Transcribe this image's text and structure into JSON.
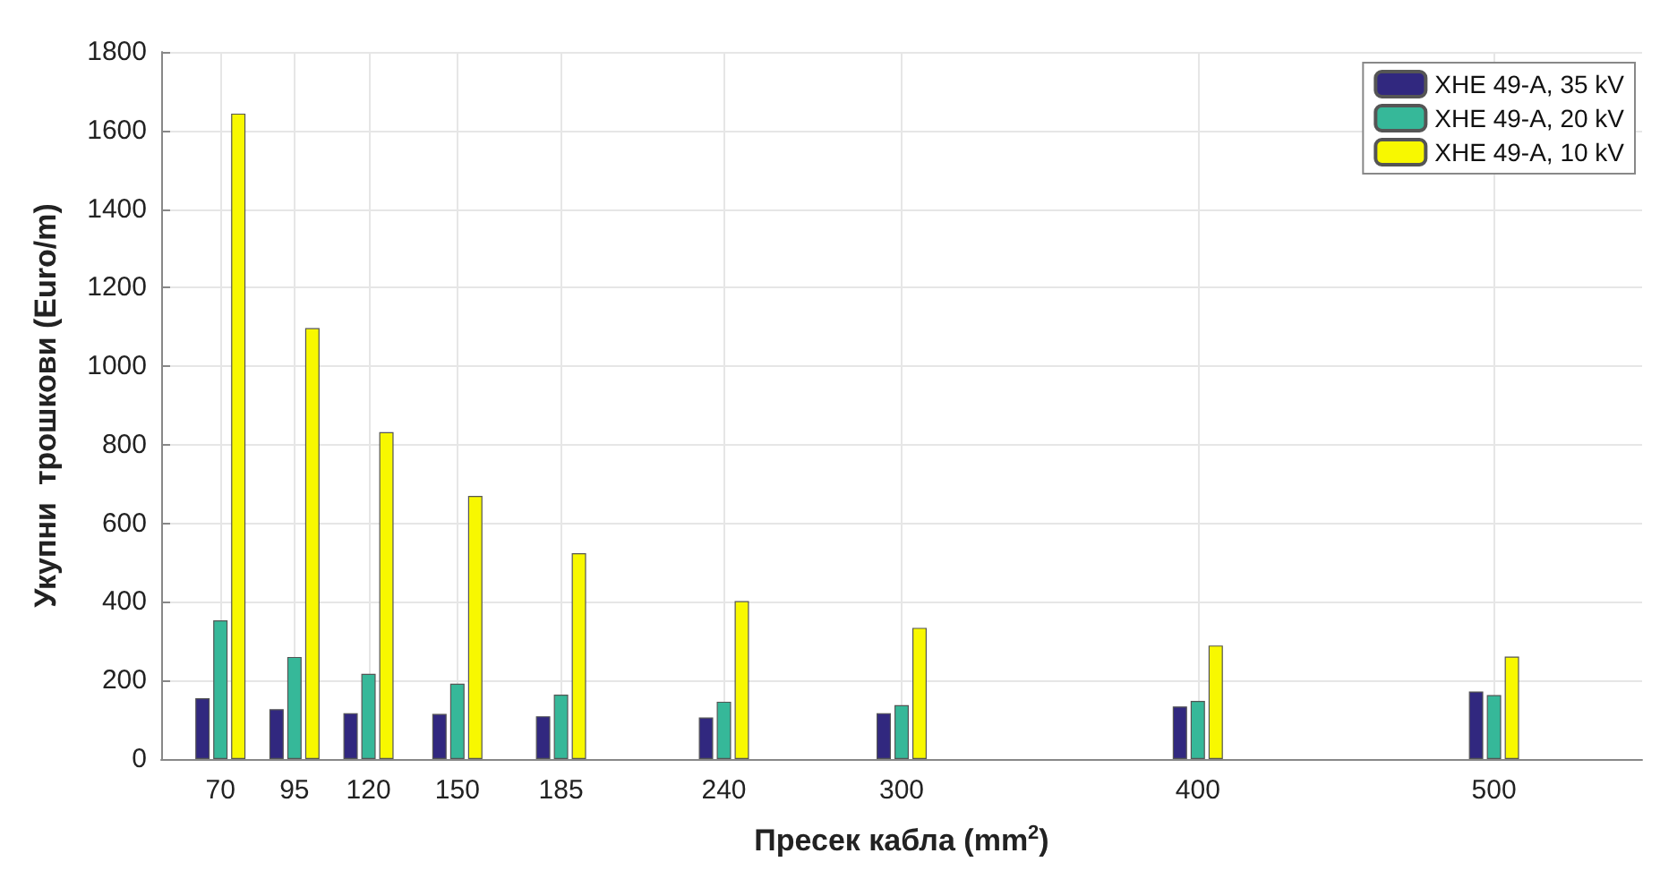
{
  "chart_data": {
    "type": "bar",
    "xlabel": "Пресек кабла (mm$^{2}$)",
    "ylabel": "Укупни  трошкови (Euro/m)",
    "x": [
      70,
      95,
      120,
      150,
      185,
      240,
      300,
      400,
      500
    ],
    "series": [
      {
        "name": "XHE 49-A, 35 kV",
        "color": "#31287f",
        "values": [
          155,
          127,
          117,
          115,
          109,
          106,
          117,
          134,
          172
        ]
      },
      {
        "name": "XHE 49-A, 20 kV",
        "color": "#36b899",
        "values": [
          353,
          260,
          217,
          192,
          164,
          146,
          137,
          148,
          163
        ]
      },
      {
        "name": "XHE 49-A, 10 kV",
        "color": "#f8f800",
        "values": [
          1643,
          1097,
          832,
          670,
          524,
          402,
          334,
          289,
          261
        ]
      }
    ],
    "xlim": [
      50,
      550
    ],
    "xticks": [
      70,
      95,
      120,
      150,
      185,
      240,
      300,
      400,
      500
    ],
    "ylim": [
      0,
      1800
    ],
    "yticks": [
      0,
      200,
      400,
      600,
      800,
      1000,
      1200,
      1400,
      1600,
      1800
    ],
    "grid": true,
    "legend": "top right"
  }
}
